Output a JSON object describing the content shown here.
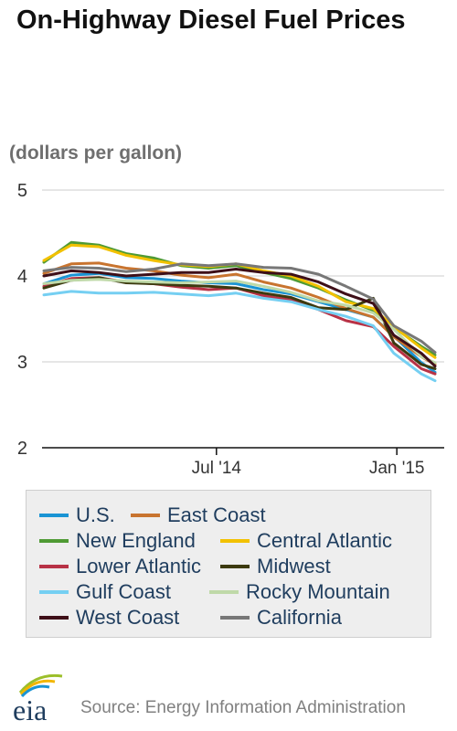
{
  "header": {
    "title": "On-Highway Diesel Fuel Prices",
    "unit_label": "(dollars per gallon)"
  },
  "footer": {
    "logo_text": "eia",
    "source": "Source: Energy Information Administration"
  },
  "chart_data": {
    "type": "line",
    "title": "On-Highway Diesel Fuel Prices",
    "ylabel": "(dollars per gallon)",
    "xlabel": "",
    "ylim": [
      2,
      5
    ],
    "yticks": [
      2,
      3,
      4,
      5
    ],
    "xlim": [
      "2014-01-06",
      "2015-02-09"
    ],
    "xticks": [
      {
        "date": "2014-07-01",
        "label": "Jul '14"
      },
      {
        "date": "2015-01-01",
        "label": "Jan '15"
      }
    ],
    "grid": true,
    "legend_position": "bottom",
    "x": [
      "2014-01-06",
      "2014-02-03",
      "2014-03-03",
      "2014-03-31",
      "2014-04-28",
      "2014-05-26",
      "2014-06-23",
      "2014-07-21",
      "2014-08-18",
      "2014-09-15",
      "2014-10-13",
      "2014-11-10",
      "2014-12-08",
      "2014-12-29",
      "2015-01-26",
      "2015-02-09"
    ],
    "series": [
      {
        "name": "U.S.",
        "color": "#1a94d4",
        "values": [
          3.91,
          4.01,
          4.03,
          3.98,
          3.97,
          3.94,
          3.92,
          3.91,
          3.84,
          3.79,
          3.7,
          3.61,
          3.52,
          3.3,
          2.99,
          2.88
        ]
      },
      {
        "name": "East Coast",
        "color": "#c8742f",
        "values": [
          4.03,
          4.14,
          4.15,
          4.09,
          4.06,
          4.01,
          3.98,
          4.02,
          3.93,
          3.86,
          3.75,
          3.62,
          3.52,
          3.29,
          3.06,
          2.97
        ]
      },
      {
        "name": "New England",
        "color": "#4f9a34",
        "values": [
          4.16,
          4.39,
          4.36,
          4.26,
          4.21,
          4.12,
          4.09,
          4.12,
          4.04,
          3.97,
          3.86,
          3.72,
          3.6,
          3.4,
          3.18,
          3.08
        ]
      },
      {
        "name": "Central Atlantic",
        "color": "#f2c100",
        "values": [
          4.18,
          4.36,
          4.34,
          4.24,
          4.18,
          4.13,
          4.11,
          4.14,
          4.06,
          4.0,
          3.88,
          3.7,
          3.62,
          3.41,
          3.16,
          3.05
        ]
      },
      {
        "name": "Lower Atlantic",
        "color": "#b83246",
        "values": [
          3.88,
          3.97,
          3.98,
          3.93,
          3.91,
          3.87,
          3.84,
          3.86,
          3.77,
          3.72,
          3.61,
          3.48,
          3.41,
          3.18,
          2.92,
          2.86
        ]
      },
      {
        "name": "Midwest",
        "color": "#3c3a0f",
        "values": [
          3.86,
          3.95,
          3.98,
          3.92,
          3.91,
          3.89,
          3.88,
          3.86,
          3.8,
          3.75,
          3.63,
          3.61,
          3.74,
          3.22,
          2.97,
          2.92
        ]
      },
      {
        "name": "Gulf Coast",
        "color": "#75cff2",
        "values": [
          3.78,
          3.82,
          3.8,
          3.8,
          3.81,
          3.79,
          3.77,
          3.8,
          3.74,
          3.7,
          3.61,
          3.53,
          3.42,
          3.1,
          2.86,
          2.78
        ]
      },
      {
        "name": "Rocky Mountain",
        "color": "#bfd9a8",
        "values": [
          3.91,
          3.95,
          3.96,
          3.94,
          3.93,
          3.92,
          3.93,
          3.94,
          3.88,
          3.81,
          3.71,
          3.66,
          3.57,
          3.38,
          3.06,
          2.99
        ]
      },
      {
        "name": "West Coast",
        "color": "#3e0f18",
        "values": [
          4.0,
          4.06,
          4.04,
          4.0,
          4.02,
          4.04,
          4.04,
          4.08,
          4.04,
          4.02,
          3.93,
          3.79,
          3.68,
          3.31,
          3.1,
          2.95
        ]
      },
      {
        "name": "California",
        "color": "#777777",
        "values": [
          4.06,
          4.1,
          4.09,
          4.05,
          4.08,
          4.14,
          4.12,
          4.14,
          4.1,
          4.09,
          4.02,
          3.88,
          3.73,
          3.42,
          3.24,
          3.11
        ]
      }
    ]
  }
}
